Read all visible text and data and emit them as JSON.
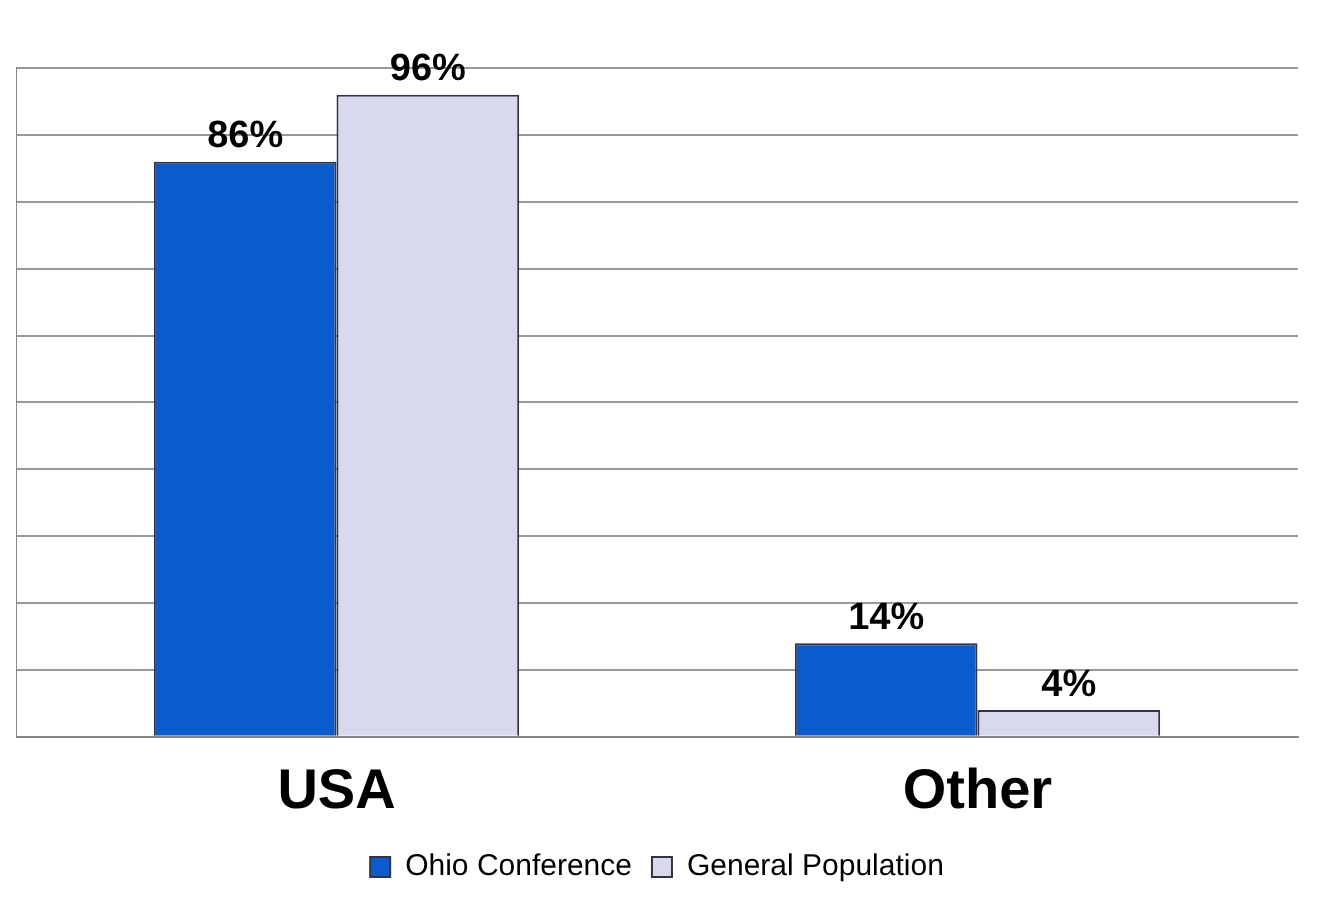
{
  "chart_data": {
    "type": "bar",
    "categories": [
      "USA",
      "Other"
    ],
    "series": [
      {
        "name": "Ohio Conference",
        "color": "#0a5ccc",
        "values": [
          86,
          14
        ],
        "value_labels": [
          "86%",
          "14%"
        ]
      },
      {
        "name": "General Population",
        "color": "#d9d9ee",
        "values": [
          96,
          4
        ],
        "value_labels": [
          "96%",
          "4%"
        ]
      }
    ],
    "tick_labels": "x",
    "grid": "y",
    "legend": "bottom"
  }
}
